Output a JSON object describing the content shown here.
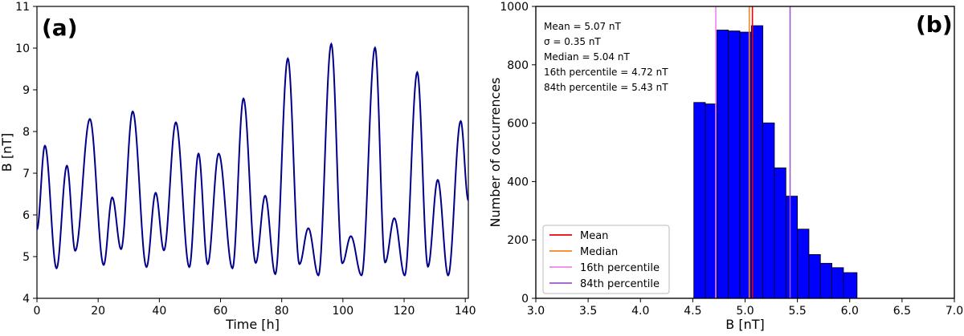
{
  "chart_data": [
    {
      "type": "line",
      "panel_label": "(a)",
      "xlabel": "Time [h]",
      "ylabel": "B [nT]",
      "xlim": [
        0,
        141
      ],
      "ylim": [
        4,
        11
      ],
      "xticks": [
        0,
        20,
        40,
        60,
        80,
        100,
        120,
        140
      ],
      "yticks": [
        4,
        5,
        6,
        7,
        8,
        9,
        10,
        11
      ],
      "grid": false,
      "line_color": "#00008B",
      "extrema": {
        "t": [
          0,
          2.6,
          6.4,
          9.8,
          12.5,
          17.3,
          21.8,
          24.6,
          27.5,
          31.3,
          35.8,
          38.8,
          41.5,
          45.4,
          49.8,
          52.8,
          55.8,
          59.4,
          63.9,
          67.5,
          71.5,
          74.6,
          77.9,
          82.0,
          85.8,
          88.7,
          92.0,
          96.2,
          99.8,
          102.6,
          106.1,
          110.5,
          113.8,
          116.8,
          120.2,
          124.3,
          127.8,
          131.0,
          134.4,
          138.5,
          141
        ],
        "B": [
          5.65,
          7.66,
          4.72,
          7.18,
          5.14,
          8.3,
          4.8,
          6.42,
          5.18,
          8.48,
          4.75,
          6.53,
          5.15,
          8.22,
          4.75,
          7.47,
          4.82,
          7.47,
          4.72,
          8.79,
          4.85,
          6.46,
          4.58,
          9.75,
          4.82,
          5.68,
          4.55,
          10.1,
          4.84,
          5.49,
          4.55,
          10.01,
          4.86,
          5.92,
          4.55,
          9.42,
          4.76,
          6.84,
          4.55,
          8.25,
          6.35
        ]
      }
    },
    {
      "type": "bar",
      "panel_label": "(b)",
      "xlabel": "B [nT]",
      "ylabel": "Number of occurrences",
      "xlim": [
        3.0,
        7.0
      ],
      "ylim": [
        0,
        1000
      ],
      "xticks": [
        "3.0",
        "3.5",
        "4.0",
        "4.5",
        "5.0",
        "5.5",
        "6.0",
        "6.5",
        "7.0"
      ],
      "yticks": [
        0,
        200,
        400,
        600,
        800,
        1000
      ],
      "bin_edges": [
        4.51,
        4.62,
        4.73,
        4.84,
        4.95,
        5.06,
        5.17,
        5.28,
        5.39,
        5.5,
        5.61,
        5.72,
        5.83,
        5.94,
        6.07
      ],
      "values": [
        671,
        666,
        919,
        916,
        912,
        934,
        601,
        447,
        350,
        237,
        150,
        120,
        105,
        88
      ],
      "bar_color": "#0000FF",
      "stats_text": [
        "Mean = 5.07 nT",
        "σ = 0.35 nT",
        "Median = 5.04 nT",
        "16th percentile = 4.72 nT",
        "84th percentile = 5.43 nT"
      ],
      "vlines": [
        {
          "name": "Mean",
          "x": 5.07,
          "color": "#E8000B"
        },
        {
          "name": "Median",
          "x": 5.04,
          "color": "#F28522"
        },
        {
          "name": "16th percentile",
          "x": 4.72,
          "color": "#EE82EE"
        },
        {
          "name": "84th percentile",
          "x": 5.43,
          "color": "#9B59D0"
        }
      ],
      "legend_position": "lower-left"
    }
  ]
}
